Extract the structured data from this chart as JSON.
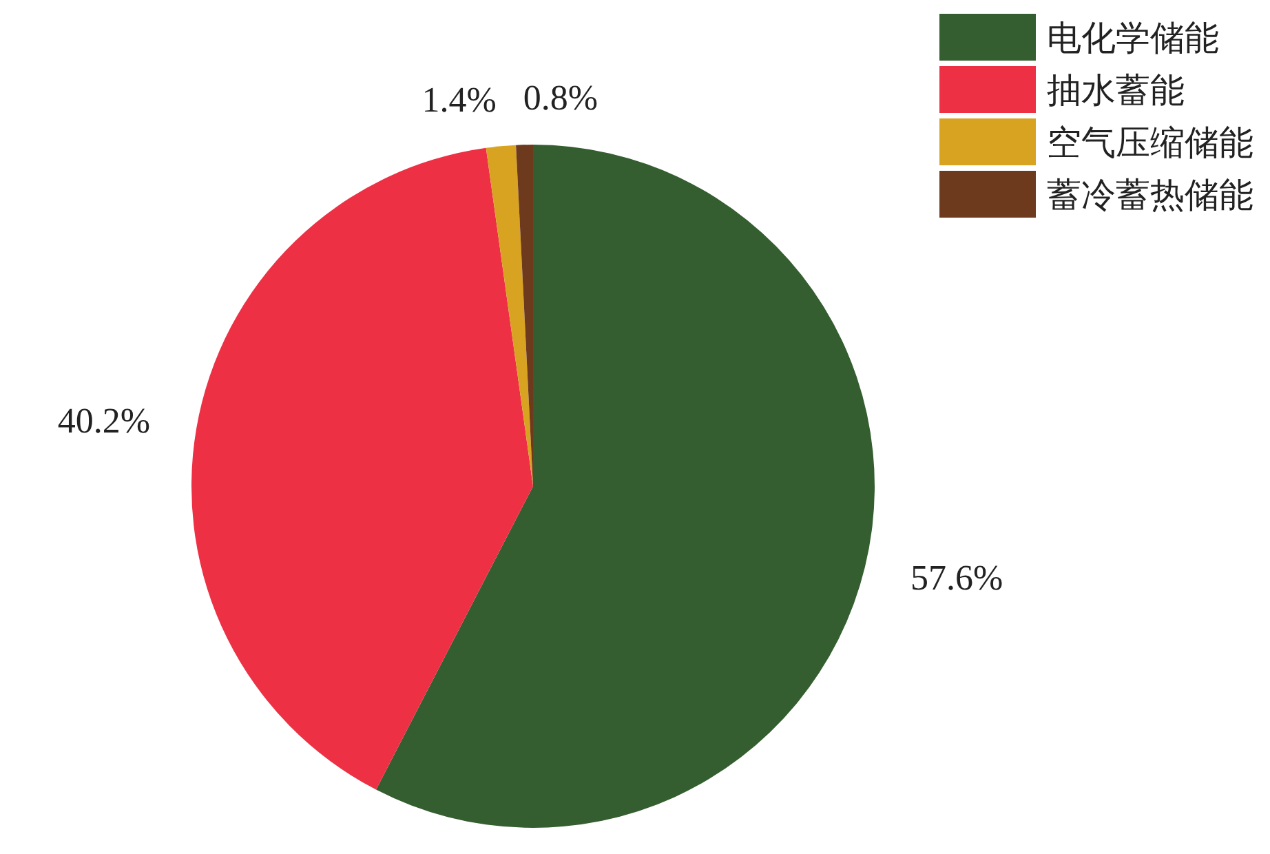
{
  "chart_data": {
    "type": "pie",
    "categories": [
      "电化学储能",
      "抽水蓄能",
      "空气压缩储能",
      "蓄冷蓄热储能"
    ],
    "values": [
      57.6,
      40.2,
      1.4,
      0.8
    ],
    "colors": [
      "#355e30",
      "#ee3044",
      "#d9a322",
      "#6e3a1e"
    ],
    "value_labels": [
      "57.6%",
      "40.2%",
      "1.4%",
      "0.8%"
    ],
    "legend": "top right"
  }
}
